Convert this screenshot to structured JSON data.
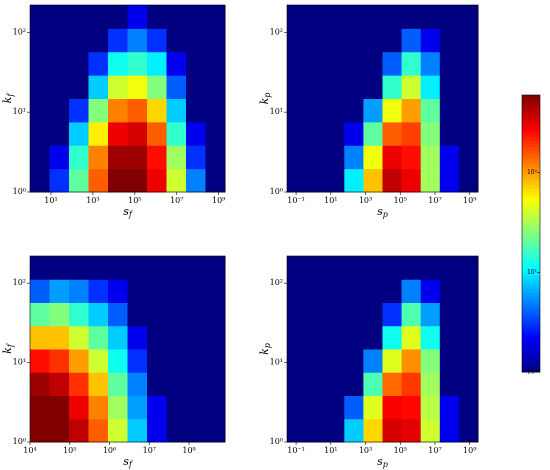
{
  "chart_data": [
    {
      "type": "heatmap",
      "xlabel": "s",
      "xlabel_sub": "f",
      "ylabel": "k",
      "ylabel_sub": "f",
      "log_x": true,
      "log_y": true,
      "xlim": [
        1,
        2000000000
      ],
      "ylim": [
        1,
        220
      ],
      "xticks": [
        {
          "value": 10,
          "label": "10¹"
        },
        {
          "value": 1000,
          "label": "10³"
        },
        {
          "value": 100000,
          "label": "10⁵"
        },
        {
          "value": 10000000,
          "label": "10⁷"
        },
        {
          "value": 1000000000,
          "label": "10⁹"
        }
      ],
      "yticks": [
        {
          "value": 1,
          "label": "10⁰"
        },
        {
          "value": 10,
          "label": "10¹"
        },
        {
          "value": 100,
          "label": "10²"
        }
      ],
      "counts": [
        [
          0,
          3,
          20,
          150,
          600,
          600,
          300,
          40,
          5,
          0
        ],
        [
          0,
          2,
          15,
          120,
          500,
          500,
          250,
          30,
          3,
          0
        ],
        [
          0,
          1,
          8,
          60,
          300,
          350,
          150,
          15,
          2,
          0
        ],
        [
          0,
          0,
          3,
          25,
          120,
          150,
          70,
          8,
          0,
          0
        ],
        [
          0,
          0,
          1,
          8,
          40,
          50,
          25,
          4,
          0,
          0
        ],
        [
          0,
          0,
          0,
          3,
          12,
          15,
          10,
          2,
          0,
          0
        ],
        [
          0,
          0,
          0,
          1,
          3,
          5,
          3,
          1,
          0,
          0
        ],
        [
          0,
          0,
          0,
          0,
          1,
          2,
          1,
          0,
          0,
          0
        ]
      ]
    },
    {
      "type": "heatmap",
      "xlabel": "s",
      "xlabel_sub": "p",
      "ylabel": "k",
      "ylabel_sub": "p",
      "log_x": true,
      "log_y": true,
      "xlim": [
        0.03,
        3000000000
      ],
      "ylim": [
        1,
        220
      ],
      "xticks": [
        {
          "value": 0.1,
          "label": "10⁻¹"
        },
        {
          "value": 10,
          "label": "10¹"
        },
        {
          "value": 1000,
          "label": "10³"
        },
        {
          "value": 100000,
          "label": "10⁵"
        },
        {
          "value": 10000000,
          "label": "10⁷"
        },
        {
          "value": 1000000000,
          "label": "10⁹"
        }
      ],
      "yticks": [
        {
          "value": 1,
          "label": "10⁰"
        },
        {
          "value": 10,
          "label": "10¹"
        },
        {
          "value": 100,
          "label": "10²"
        }
      ],
      "counts": [
        [
          0,
          0,
          1,
          10,
          80,
          400,
          300,
          30,
          2,
          0
        ],
        [
          0,
          0,
          0,
          5,
          50,
          300,
          250,
          30,
          2,
          0
        ],
        [
          0,
          0,
          0,
          2,
          20,
          150,
          180,
          25,
          1,
          0
        ],
        [
          0,
          0,
          0,
          0,
          6,
          50,
          100,
          20,
          1,
          0
        ],
        [
          0,
          0,
          0,
          0,
          1,
          15,
          40,
          10,
          0,
          0
        ],
        [
          0,
          0,
          0,
          0,
          0,
          4,
          15,
          5,
          0,
          0
        ],
        [
          0,
          0,
          0,
          0,
          0,
          1,
          4,
          2,
          0,
          0
        ],
        [
          0,
          0,
          0,
          0,
          0,
          0,
          1,
          0,
          0,
          0
        ]
      ]
    },
    {
      "type": "heatmap",
      "xlabel": "s",
      "xlabel_sub": "f",
      "ylabel": "k",
      "ylabel_sub": "f",
      "log_x": true,
      "log_y": true,
      "xlim": [
        10000,
        800000000
      ],
      "ylim": [
        1,
        220
      ],
      "xticks": [
        {
          "value": 10000,
          "label": "10⁴"
        },
        {
          "value": 100000,
          "label": "10⁵"
        },
        {
          "value": 1000000,
          "label": "10⁶"
        },
        {
          "value": 10000000,
          "label": "10⁷"
        },
        {
          "value": 100000000,
          "label": "10⁸"
        }
      ],
      "yticks": [
        {
          "value": 1,
          "label": "10⁰"
        },
        {
          "value": 10,
          "label": "10¹"
        },
        {
          "value": 100,
          "label": "10²"
        }
      ],
      "counts": [
        [
          800,
          700,
          400,
          150,
          40,
          8,
          2,
          1,
          0,
          0
        ],
        [
          700,
          600,
          300,
          120,
          30,
          6,
          2,
          0,
          0,
          0
        ],
        [
          500,
          400,
          200,
          80,
          20,
          5,
          1,
          0,
          0,
          0
        ],
        [
          250,
          200,
          100,
          40,
          12,
          3,
          1,
          0,
          0,
          0
        ],
        [
          80,
          80,
          40,
          20,
          8,
          2,
          1,
          0,
          0,
          0
        ],
        [
          20,
          25,
          15,
          8,
          4,
          1,
          0,
          0,
          0,
          0
        ],
        [
          4,
          6,
          5,
          3,
          2,
          1,
          0,
          0,
          0,
          0
        ],
        [
          1,
          1,
          1,
          1,
          0,
          0,
          0,
          0,
          0,
          0
        ]
      ]
    },
    {
      "type": "heatmap",
      "xlabel": "s",
      "xlabel_sub": "p",
      "ylabel": "k",
      "ylabel_sub": "p",
      "log_x": true,
      "log_y": true,
      "xlim": [
        0.03,
        3000000000
      ],
      "ylim": [
        1,
        220
      ],
      "xticks": [
        {
          "value": 0.1,
          "label": "10⁻¹"
        },
        {
          "value": 10,
          "label": "10¹"
        },
        {
          "value": 1000,
          "label": "10³"
        },
        {
          "value": 100000,
          "label": "10⁵"
        },
        {
          "value": 10000000,
          "label": "10⁷"
        },
        {
          "value": 1000000000,
          "label": "10⁹"
        }
      ],
      "yticks": [
        {
          "value": 1,
          "label": "10⁰"
        },
        {
          "value": 10,
          "label": "10¹"
        },
        {
          "value": 100,
          "label": "10²"
        }
      ],
      "counts": [
        [
          0,
          0,
          1,
          8,
          70,
          350,
          320,
          40,
          2,
          0
        ],
        [
          0,
          0,
          0,
          4,
          45,
          280,
          260,
          35,
          2,
          0
        ],
        [
          0,
          0,
          0,
          1,
          18,
          140,
          190,
          30,
          1,
          0
        ],
        [
          0,
          0,
          0,
          0,
          5,
          45,
          110,
          25,
          1,
          0
        ],
        [
          0,
          0,
          0,
          0,
          1,
          12,
          45,
          12,
          0,
          0
        ],
        [
          0,
          0,
          0,
          0,
          0,
          3,
          18,
          6,
          0,
          0
        ],
        [
          0,
          0,
          0,
          0,
          0,
          1,
          5,
          2,
          0,
          0
        ],
        [
          0,
          0,
          0,
          0,
          0,
          0,
          1,
          1,
          0,
          0
        ]
      ]
    }
  ],
  "colorbar": {
    "log": true,
    "lim": [
      1,
      600
    ],
    "ticks": [
      {
        "value": 1,
        "label": "10⁰"
      },
      {
        "value": 10,
        "label": "10¹"
      },
      {
        "value": 100,
        "label": "10²"
      }
    ]
  }
}
